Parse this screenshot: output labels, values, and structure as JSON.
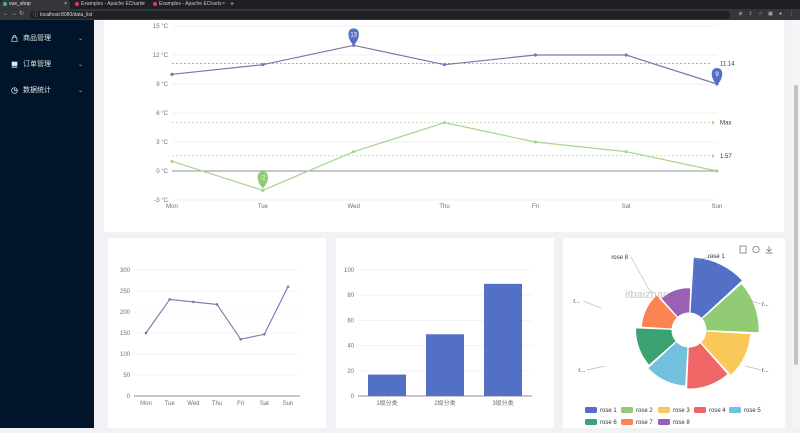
{
  "browser": {
    "tabs": [
      {
        "label": "vue_shop",
        "active": true,
        "color": "#41b883"
      },
      {
        "label": "Examples - Apache ECharts",
        "active": false,
        "color": "#e43961"
      },
      {
        "label": "Examples - Apache ECharts",
        "active": false,
        "color": "#e43961"
      }
    ],
    "new_tab": "+",
    "url": "localhost:8080/data_list"
  },
  "sidebar": {
    "bg": "#001529",
    "items": [
      {
        "label": "商品管理",
        "icon": "bag-icon"
      },
      {
        "label": "订单管理",
        "icon": "order-icon"
      },
      {
        "label": "数据统计",
        "icon": "chart-icon"
      }
    ]
  },
  "charts": {
    "toolbox": [
      "data-view-icon",
      "restore-icon",
      "save-image-icon"
    ],
    "watermark": "itbaizhan",
    "colors": {
      "primary": "#5470c6",
      "green": "#91cc75",
      "purple": "#7b76ab",
      "light_green": "#a8d48e"
    }
  },
  "chart_data": [
    {
      "type": "line",
      "categories": [
        "Mon",
        "Tue",
        "Wed",
        "Thu",
        "Fri",
        "Sat",
        "Sun"
      ],
      "ylim": [
        -3,
        15
      ],
      "yticks": [
        "15 °C",
        "12 °C",
        "9 °C",
        "6 °C",
        "3 °C",
        "0 °C",
        "-3 °C"
      ],
      "series": [
        {
          "values": [
            10,
            11,
            13,
            11,
            12,
            12,
            9
          ],
          "mark_points": [
            {
              "label": "13"
            },
            {
              "label": "9"
            }
          ],
          "mark_line": {
            "label": "11.14",
            "value": 11.14
          }
        },
        {
          "values": [
            1,
            -2,
            2,
            5,
            3,
            2,
            0
          ],
          "mark_points": [
            {
              "label": "-2"
            }
          ],
          "mark_lines": [
            {
              "label": "Max",
              "value": 5
            },
            {
              "label": "1.57",
              "value": 1.57
            }
          ]
        }
      ]
    },
    {
      "type": "line",
      "categories": [
        "Mon",
        "Tue",
        "Wed",
        "Thu",
        "Fri",
        "Sat",
        "Sun"
      ],
      "ylim": [
        0,
        300
      ],
      "yticks": [
        "300",
        "250",
        "200",
        "150",
        "100",
        "50",
        "0"
      ],
      "values": [
        150,
        230,
        224,
        218,
        135,
        147,
        260
      ]
    },
    {
      "type": "bar",
      "categories": [
        "1级分类",
        "2级分类",
        "3级分类"
      ],
      "ylim": [
        0,
        100
      ],
      "yticks": [
        "100",
        "80",
        "60",
        "40",
        "20",
        "0"
      ],
      "values": [
        17,
        49,
        89
      ]
    },
    {
      "type": "pie",
      "rose": true,
      "slices": [
        {
          "name": "rose 1",
          "value": 40,
          "color": "#5470c6"
        },
        {
          "name": "rose 2",
          "value": 38,
          "color": "#91cc75"
        },
        {
          "name": "rose 3",
          "value": 32,
          "color": "#fac858"
        },
        {
          "name": "rose 4",
          "value": 30,
          "color": "#ee6666"
        },
        {
          "name": "rose 5",
          "value": 28,
          "color": "#73c0de"
        },
        {
          "name": "rose 6",
          "value": 26,
          "color": "#3ba272"
        },
        {
          "name": "rose 7",
          "value": 22,
          "color": "#fc8452"
        },
        {
          "name": "rose 8",
          "value": 18,
          "color": "#9a60b4"
        }
      ],
      "outer_labels": [
        "rose 1",
        "r...",
        "r...",
        "r...",
        "r...",
        "rose 8"
      ]
    }
  ]
}
